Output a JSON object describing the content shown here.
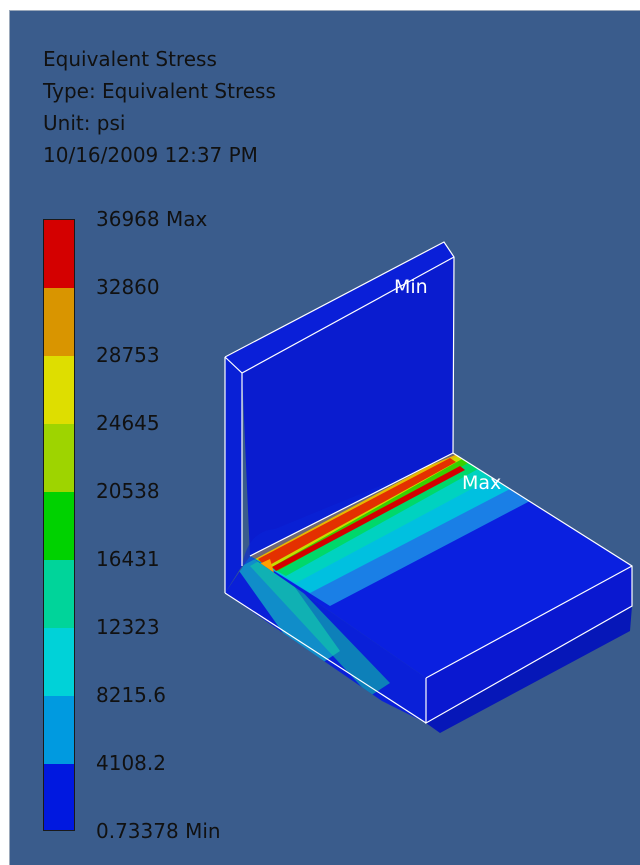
{
  "result": {
    "title": "Equivalent Stress",
    "type_line": "Type: Equivalent Stress",
    "unit_line": "Unit: psi",
    "timestamp": "10/16/2009 12:37 PM"
  },
  "legend": {
    "labels": [
      "36968 Max",
      "32860",
      "28753",
      "24645",
      "20538",
      "16431",
      "12323",
      "8215.6",
      "4108.2",
      "0.73378 Min"
    ],
    "band_colors": [
      "#d40000",
      "#d99500",
      "#dede00",
      "#9ed400",
      "#00d200",
      "#00d49a",
      "#00d2d8",
      "#009ae0",
      "#0018e0"
    ]
  },
  "probes": {
    "min_label": "Min",
    "max_label": "Max"
  },
  "colors": {
    "viewport_background": "#3a5c8c",
    "edge_lines": "#ffffff"
  }
}
